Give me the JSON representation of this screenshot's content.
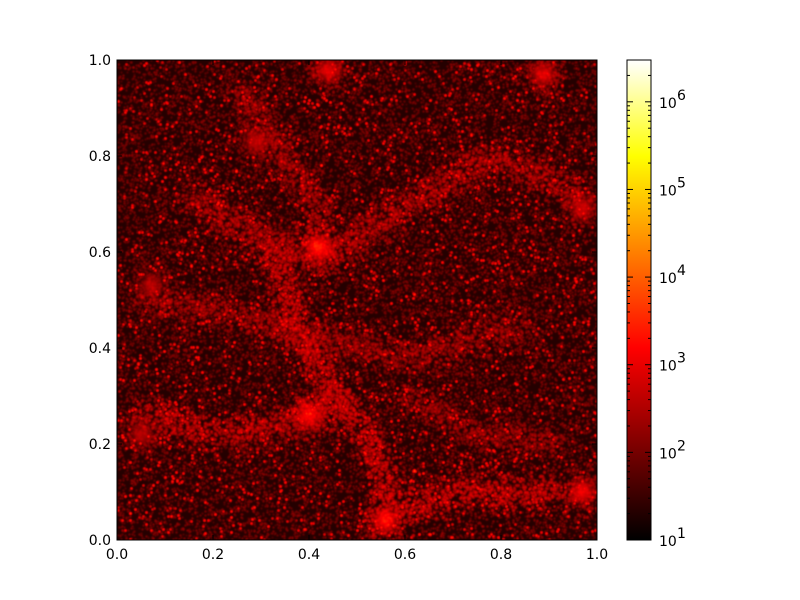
{
  "chart_data": {
    "type": "heatmap",
    "title": "",
    "xlabel": "",
    "ylabel": "",
    "xlim": [
      0.0,
      1.0
    ],
    "ylim": [
      0.0,
      1.0
    ],
    "x_ticks": [
      0.0,
      0.2,
      0.4,
      0.6,
      0.8,
      1.0
    ],
    "y_ticks": [
      0.0,
      0.2,
      0.4,
      0.6,
      0.8,
      1.0
    ],
    "x_tick_labels": [
      "0.0",
      "0.2",
      "0.4",
      "0.6",
      "0.8",
      "1.0"
    ],
    "y_tick_labels": [
      "0.0",
      "0.2",
      "0.4",
      "0.6",
      "0.8",
      "1.0"
    ],
    "grid": false,
    "colormap": "hot",
    "colorbar": {
      "scale": "log",
      "range": [
        10,
        3000000
      ],
      "ticks": [
        10,
        100,
        1000,
        10000,
        100000,
        1000000
      ],
      "tick_bases": [
        "10",
        "10",
        "10",
        "10",
        "10",
        "10"
      ],
      "tick_exponents": [
        "1",
        "2",
        "3",
        "4",
        "5",
        "6"
      ],
      "colors": [
        "#000000",
        "#800000",
        "#ff0000",
        "#ff8000",
        "#ffff00",
        "#ffffff"
      ]
    },
    "density_features": {
      "background_density": 20,
      "filaments": [
        {
          "points": [
            [
              0.32,
              0.62
            ],
            [
              0.37,
              0.45
            ],
            [
              0.44,
              0.32
            ],
            [
              0.52,
              0.22
            ],
            [
              0.58,
              0.06
            ],
            [
              0.72,
              0.1
            ],
            [
              0.92,
              0.1
            ]
          ],
          "density": 3000
        },
        {
          "points": [
            [
              0.05,
              0.26
            ],
            [
              0.2,
              0.22
            ],
            [
              0.36,
              0.24
            ],
            [
              0.47,
              0.3
            ]
          ],
          "density": 2500
        },
        {
          "points": [
            [
              0.15,
              0.72
            ],
            [
              0.3,
              0.63
            ],
            [
              0.42,
              0.58
            ],
            [
              0.58,
              0.68
            ],
            [
              0.78,
              0.8
            ],
            [
              0.97,
              0.72
            ]
          ],
          "density": 2000
        },
        {
          "points": [
            [
              0.05,
              0.5
            ],
            [
              0.2,
              0.48
            ],
            [
              0.4,
              0.42
            ],
            [
              0.62,
              0.38
            ],
            [
              0.85,
              0.45
            ]
          ],
          "density": 1500
        },
        {
          "points": [
            [
              0.25,
              0.95
            ],
            [
              0.35,
              0.8
            ],
            [
              0.44,
              0.66
            ]
          ],
          "density": 1500
        },
        {
          "points": [
            [
              0.6,
              0.3
            ],
            [
              0.75,
              0.22
            ],
            [
              0.92,
              0.2
            ]
          ],
          "density": 1200
        }
      ],
      "clusters": [
        {
          "x": 0.42,
          "y": 0.61,
          "density": 300000
        },
        {
          "x": 0.4,
          "y": 0.26,
          "density": 200000
        },
        {
          "x": 0.56,
          "y": 0.04,
          "density": 250000
        },
        {
          "x": 0.97,
          "y": 0.1,
          "density": 150000
        },
        {
          "x": 0.44,
          "y": 0.98,
          "density": 120000
        },
        {
          "x": 0.89,
          "y": 0.97,
          "density": 120000
        },
        {
          "x": 0.97,
          "y": 0.69,
          "density": 80000
        },
        {
          "x": 0.29,
          "y": 0.83,
          "density": 60000
        },
        {
          "x": 0.07,
          "y": 0.53,
          "density": 50000
        },
        {
          "x": 0.05,
          "y": 0.22,
          "density": 50000
        }
      ]
    }
  }
}
